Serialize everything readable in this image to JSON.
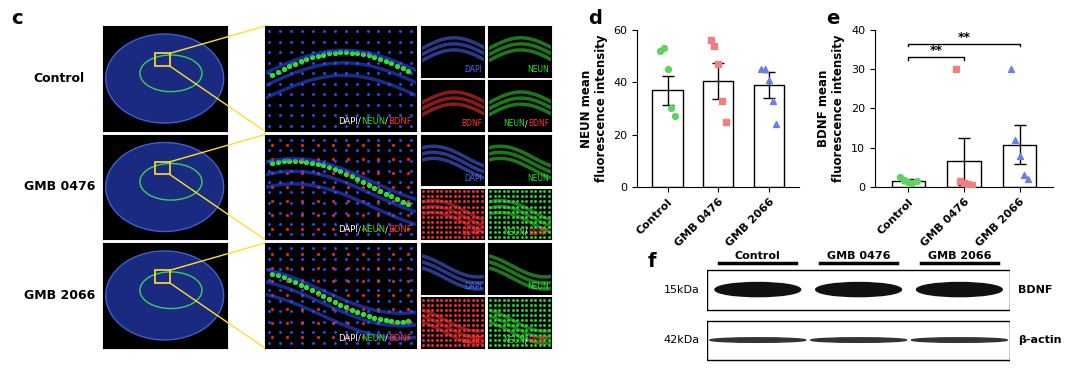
{
  "panel_c": {
    "label": "c",
    "rows": [
      "Control",
      "GMB 0476",
      "GMB 2066"
    ],
    "channels": [
      "DAPI",
      "NEUN",
      "BDNF"
    ],
    "separator": "/"
  },
  "chart_data": [
    {
      "label": "d",
      "type": "bar",
      "categories": [
        "Control",
        "GMB 0476",
        "GMB 2066"
      ],
      "values": [
        37,
        40.5,
        39
      ],
      "errors": [
        5.5,
        7,
        5
      ],
      "points": [
        [
          52,
          53,
          45,
          30,
          27
        ],
        [
          56,
          54,
          47,
          33,
          25
        ],
        [
          45,
          45,
          41,
          33,
          24
        ]
      ],
      "colors": [
        "#5fd35f",
        "#f08080",
        "#6b7fe3"
      ],
      "y_label": "NEUN mean\nfluorescence intensity",
      "ylim": [
        0,
        60
      ],
      "yticks": [
        0,
        20,
        40,
        60
      ]
    },
    {
      "label": "e",
      "type": "bar",
      "categories": [
        "Control",
        "GMB 0476",
        "GMB 2066"
      ],
      "values": [
        1.6,
        6.6,
        10.8
      ],
      "errors": [
        0.5,
        6,
        5
      ],
      "points": [
        [
          2.5,
          1.8,
          1.2,
          1.0,
          1.5
        ],
        [
          30,
          1.5,
          1.0,
          0.8,
          0.5
        ],
        [
          30,
          12,
          8,
          3,
          2
        ]
      ],
      "colors": [
        "#5fd35f",
        "#f08080",
        "#6b7fe3"
      ],
      "y_label": "BDNF mean\nfluorescence intensity",
      "ylim": [
        0,
        40
      ],
      "yticks": [
        0,
        10,
        20,
        30,
        40
      ],
      "annotations": [
        {
          "text": "**",
          "from": "Control",
          "to": "GMB 0476",
          "y": 33
        },
        {
          "text": "**",
          "from": "Control",
          "to": "GMB 2066",
          "y": 36.5
        }
      ]
    }
  ],
  "panel_f": {
    "label": "f",
    "lanes": [
      "Control",
      "GMB 0476",
      "GMB 2066"
    ],
    "rows": [
      {
        "name": "BDNF",
        "size": "15kDa"
      },
      {
        "name": "β-actin",
        "size": "42kDa"
      }
    ]
  }
}
